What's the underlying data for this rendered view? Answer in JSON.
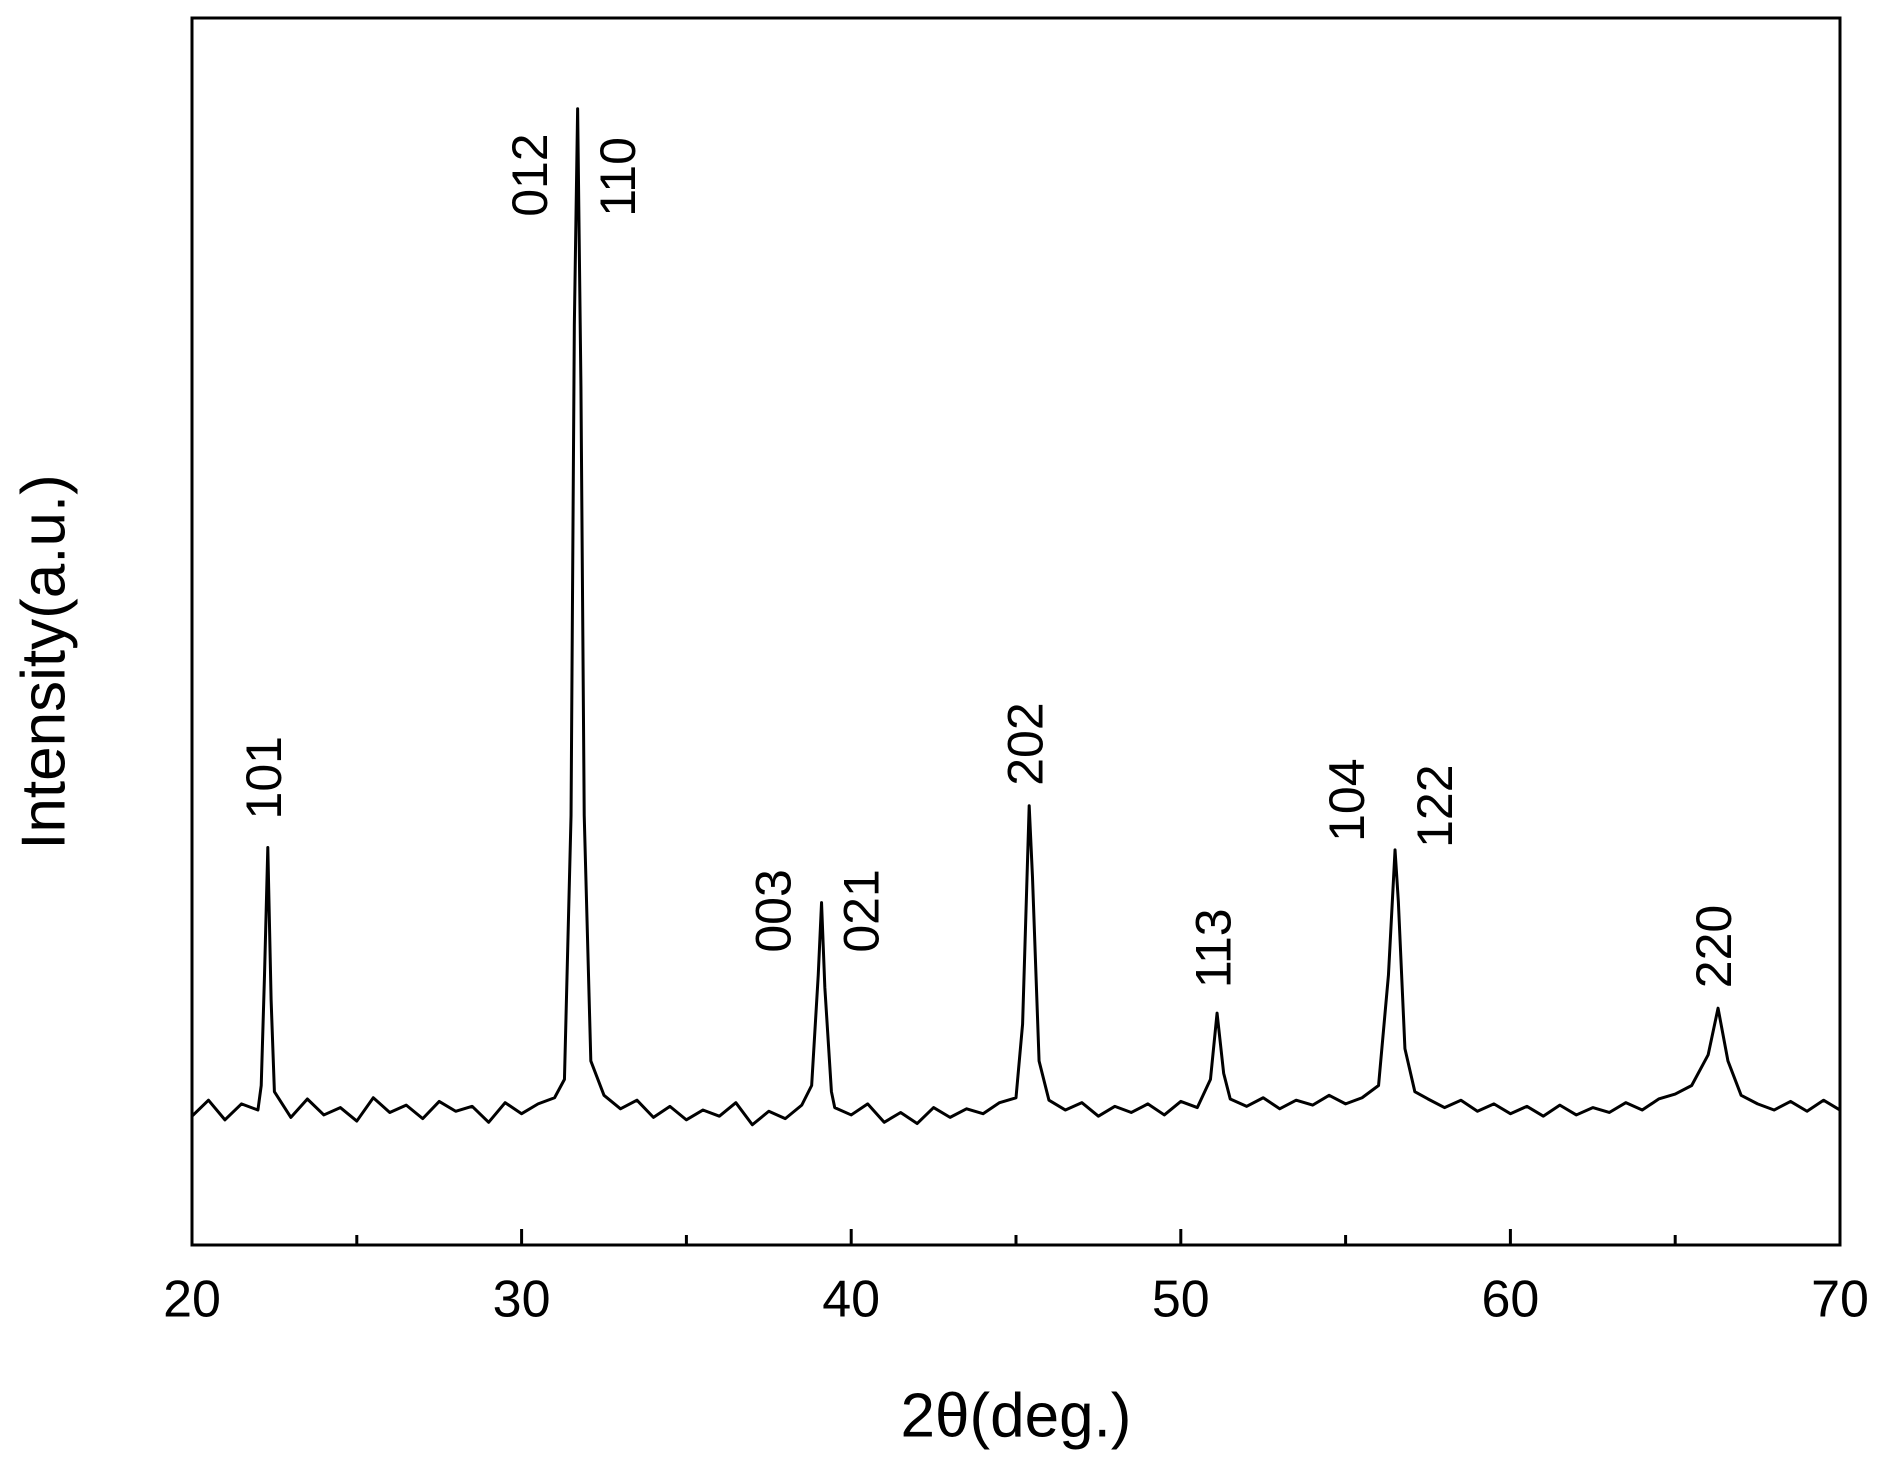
{
  "chart_data": {
    "type": "line",
    "xlabel": "2θ(deg.)",
    "ylabel": "Intensity(a.u.)",
    "x": [
      20,
      20.5,
      21,
      21.5,
      22,
      22.1,
      22.2,
      22.3,
      22.4,
      22.5,
      23,
      23.5,
      24,
      24.5,
      25,
      25.5,
      26,
      26.5,
      27,
      27.5,
      28,
      28.5,
      29,
      29.5,
      30,
      30.5,
      31,
      31.3,
      31.5,
      31.6,
      31.7,
      31.8,
      31.9,
      32.1,
      32.5,
      33,
      33.5,
      34,
      34.5,
      35,
      35.5,
      36,
      36.5,
      37,
      37.5,
      38,
      38.5,
      38.8,
      39,
      39.1,
      39.2,
      39.4,
      39.5,
      40,
      40.5,
      41,
      41.5,
      42,
      42.5,
      43,
      43.5,
      44,
      44.5,
      45,
      45.2,
      45.4,
      45.5,
      45.7,
      46,
      46.5,
      47,
      47.5,
      48,
      48.5,
      49,
      49.5,
      50,
      50.5,
      50.9,
      51.1,
      51.3,
      51.5,
      52,
      52.5,
      53,
      53.5,
      54,
      54.5,
      55,
      55.5,
      56,
      56.3,
      56.5,
      56.6,
      56.8,
      57.1,
      57.5,
      58,
      58.5,
      59,
      59.5,
      60,
      60.5,
      61,
      61.5,
      62,
      62.5,
      63,
      63.5,
      64,
      64.5,
      65,
      65.5,
      66,
      66.3,
      66.6,
      67,
      67.5,
      68,
      68.5,
      69,
      69.5,
      70
    ],
    "values": [
      10.5,
      11.8,
      10.2,
      11.5,
      11.0,
      13,
      22,
      32.4,
      20,
      12.5,
      10.4,
      11.9,
      10.6,
      11.2,
      10.1,
      12.0,
      10.8,
      11.4,
      10.3,
      11.7,
      10.9,
      11.3,
      10.0,
      11.6,
      10.7,
      11.5,
      12.0,
      13.5,
      35,
      75,
      92.6,
      70,
      35,
      15,
      12.2,
      11.1,
      11.8,
      10.4,
      11.3,
      10.2,
      11.0,
      10.5,
      11.6,
      9.8,
      10.9,
      10.3,
      11.4,
      13,
      22,
      27.9,
      21,
      12.5,
      11.2,
      10.6,
      11.5,
      10.0,
      10.8,
      9.9,
      11.2,
      10.4,
      11.1,
      10.7,
      11.6,
      12.0,
      18,
      35.8,
      30,
      15,
      11.8,
      11.0,
      11.6,
      10.5,
      11.3,
      10.8,
      11.5,
      10.6,
      11.7,
      11.2,
      13.5,
      18.9,
      14,
      11.9,
      11.3,
      12.0,
      11.1,
      11.8,
      11.4,
      12.2,
      11.5,
      12.0,
      13,
      22,
      32.2,
      28,
      16,
      12.5,
      11.9,
      11.2,
      11.8,
      10.9,
      11.5,
      10.7,
      11.3,
      10.5,
      11.4,
      10.6,
      11.2,
      10.8,
      11.6,
      11.0,
      11.9,
      12.3,
      13.0,
      15.5,
      19.3,
      15,
      12.2,
      11.5,
      11.0,
      11.7,
      10.9,
      11.8,
      11.0
    ],
    "color": "#000000",
    "xlim": [
      20,
      70
    ],
    "xticks": [
      20,
      30,
      40,
      50,
      60,
      70
    ],
    "minor_xticks": [
      25,
      35,
      45,
      55,
      65
    ],
    "ylim": [
      0,
      100
    ],
    "annotations": [
      {
        "text": "101",
        "x": 22.3
      },
      {
        "text": "012",
        "x": 31.7
      },
      {
        "text": "110",
        "x": 31.7
      },
      {
        "text": "003",
        "x": 39.1
      },
      {
        "text": "021",
        "x": 39.1
      },
      {
        "text": "202",
        "x": 45.4
      },
      {
        "text": "113",
        "x": 51.1
      },
      {
        "text": "104",
        "x": 56.5
      },
      {
        "text": "122",
        "x": 56.5
      },
      {
        "text": "220",
        "x": 66.3
      }
    ]
  }
}
